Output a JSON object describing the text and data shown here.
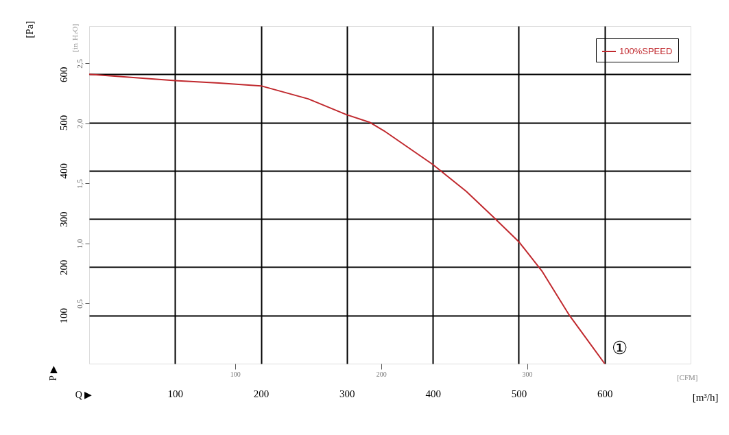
{
  "chart_data": {
    "type": "line",
    "ylabel": "[Pa]",
    "y2label": "[in H₂O]",
    "xlabel": "[m³/h]",
    "x2label": "[CFM]",
    "x": [
      0,
      100,
      151,
      200,
      255,
      300,
      327,
      343,
      400,
      439,
      471,
      500,
      527,
      559,
      600
    ],
    "series": [
      {
        "name": "100%SPEED",
        "color": "#c0282d",
        "values": [
          600,
          587,
          582,
          576,
          549,
          516,
          500,
          483,
          413,
          357,
          303,
          253,
          192,
          100,
          0
        ]
      }
    ],
    "xlim": [
      0,
      700
    ],
    "xticks": [
      100,
      200,
      300,
      400,
      500,
      600
    ],
    "ylim": [
      0,
      700
    ],
    "yticks": [
      100,
      200,
      300,
      400,
      500,
      600
    ],
    "y2lim": [
      0,
      2.81
    ],
    "y2ticks": [
      {
        "value": 0.5,
        "label": "0,5"
      },
      {
        "value": 1.0,
        "label": "1,0"
      },
      {
        "value": 1.5,
        "label": "1,5"
      },
      {
        "value": 2.0,
        "label": "2,0"
      },
      {
        "value": 2.5,
        "label": "2,5"
      }
    ],
    "x2lim": [
      0,
      412
    ],
    "x2ticks": [
      100,
      200,
      300
    ],
    "grid": true,
    "legend": "top right",
    "line_style": "solid",
    "marker": "none",
    "annotations": [
      "P ▶",
      "Q ▶",
      {
        "text": "①",
        "x": 600,
        "y": 0
      }
    ]
  }
}
